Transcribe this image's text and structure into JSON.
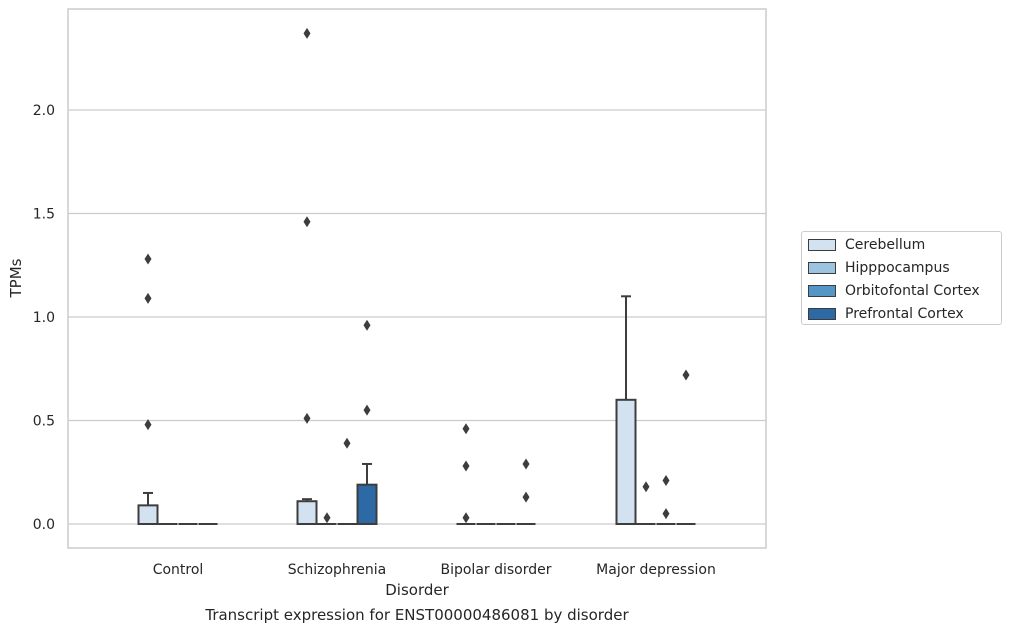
{
  "chart_data": {
    "type": "box",
    "title": "",
    "caption": "Transcript expression for ENST00000486081 by disorder",
    "xlabel": "Disorder",
    "ylabel": "TPMs",
    "ylim": [
      -0.12,
      2.48
    ],
    "yticks": [
      "0.0",
      "0.5",
      "1.0",
      "1.5",
      "2.0"
    ],
    "ytick_values": [
      0.0,
      0.5,
      1.0,
      1.5,
      2.0
    ],
    "grid": "horizontal",
    "legend_position": "right",
    "categories": [
      "Control",
      "Schizophrenia",
      "Bipolar disorder",
      "Major depression"
    ],
    "series": [
      {
        "name": "Cerebellum",
        "color": "#d3e2f1",
        "boxes": [
          {
            "q1": 0.0,
            "median": 0.0,
            "q3": 0.09,
            "whisker_low": 0.0,
            "whisker_high": 0.15,
            "outliers": [
              0.48,
              1.09,
              1.28
            ]
          },
          {
            "q1": 0.0,
            "median": 0.0,
            "q3": 0.11,
            "whisker_low": 0.0,
            "whisker_high": 0.12,
            "outliers": [
              0.51,
              1.46,
              2.37
            ]
          },
          {
            "q1": 0.0,
            "median": 0.0,
            "q3": 0.0,
            "whisker_low": 0.0,
            "whisker_high": 0.0,
            "outliers": [
              0.03,
              0.28,
              0.46
            ]
          },
          {
            "q1": 0.0,
            "median": 0.0,
            "q3": 0.6,
            "whisker_low": 0.0,
            "whisker_high": 1.1,
            "outliers": []
          }
        ]
      },
      {
        "name": "Hipppocampus",
        "color": "#9cc3df",
        "boxes": [
          {
            "q1": 0.0,
            "median": 0.0,
            "q3": 0.0,
            "whisker_low": 0.0,
            "whisker_high": 0.0,
            "outliers": []
          },
          {
            "q1": 0.0,
            "median": 0.0,
            "q3": 0.0,
            "whisker_low": 0.0,
            "whisker_high": 0.0,
            "outliers": [
              0.03
            ]
          },
          {
            "q1": 0.0,
            "median": 0.0,
            "q3": 0.0,
            "whisker_low": 0.0,
            "whisker_high": 0.0,
            "outliers": []
          },
          {
            "q1": 0.0,
            "median": 0.0,
            "q3": 0.0,
            "whisker_low": 0.0,
            "whisker_high": 0.0,
            "outliers": [
              0.18
            ]
          }
        ]
      },
      {
        "name": "Orbitofontal Cortex",
        "color": "#5596c6",
        "boxes": [
          {
            "q1": 0.0,
            "median": 0.0,
            "q3": 0.0,
            "whisker_low": 0.0,
            "whisker_high": 0.0,
            "outliers": []
          },
          {
            "q1": 0.0,
            "median": 0.0,
            "q3": 0.0,
            "whisker_low": 0.0,
            "whisker_high": 0.0,
            "outliers": [
              0.39
            ]
          },
          {
            "q1": 0.0,
            "median": 0.0,
            "q3": 0.0,
            "whisker_low": 0.0,
            "whisker_high": 0.0,
            "outliers": []
          },
          {
            "q1": 0.0,
            "median": 0.0,
            "q3": 0.0,
            "whisker_low": 0.0,
            "whisker_high": 0.0,
            "outliers": [
              0.05,
              0.21
            ]
          }
        ]
      },
      {
        "name": "Prefrontal Cortex",
        "color": "#2d6aa5",
        "boxes": [
          {
            "q1": 0.0,
            "median": 0.0,
            "q3": 0.0,
            "whisker_low": 0.0,
            "whisker_high": 0.0,
            "outliers": []
          },
          {
            "q1": 0.0,
            "median": 0.0,
            "q3": 0.19,
            "whisker_low": 0.0,
            "whisker_high": 0.29,
            "outliers": [
              0.55,
              0.96
            ]
          },
          {
            "q1": 0.0,
            "median": 0.0,
            "q3": 0.0,
            "whisker_low": 0.0,
            "whisker_high": 0.0,
            "outliers": [
              0.13,
              0.29
            ]
          },
          {
            "q1": 0.0,
            "median": 0.0,
            "q3": 0.0,
            "whisker_low": 0.0,
            "whisker_high": 0.0,
            "outliers": [
              0.72
            ]
          }
        ]
      }
    ]
  }
}
